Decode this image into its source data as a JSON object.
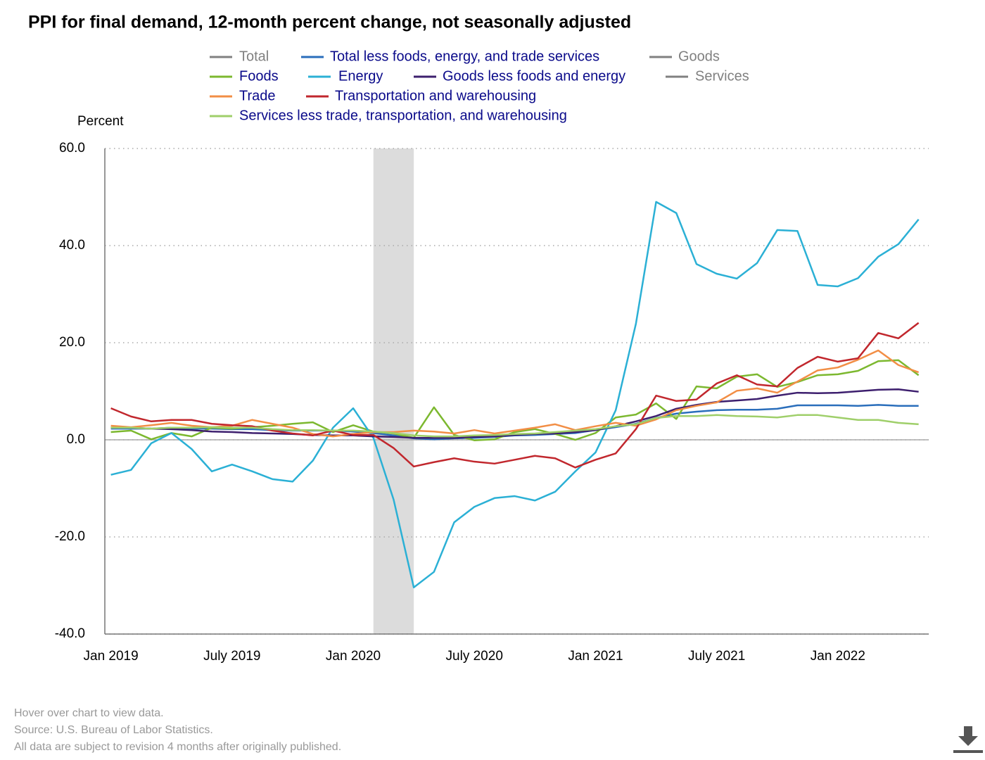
{
  "chart_data": {
    "type": "line",
    "title": "PPI for final demand, 12-month percent change, not seasonally adjusted",
    "y_label": "Percent",
    "notes": [
      "Hover over chart to view data.",
      "Source: U.S. Bureau of Labor Statistics.",
      "All data are subject to revision 4 months after originally published."
    ],
    "categories": [
      "Jan 2019",
      null,
      null,
      null,
      null,
      null,
      "July 2019",
      null,
      null,
      null,
      null,
      null,
      "Jan 2020",
      null,
      null,
      null,
      null,
      null,
      "July 2020",
      null,
      null,
      null,
      null,
      null,
      "Jan 2021",
      null,
      null,
      null,
      null,
      null,
      "July 2021",
      null,
      null,
      null,
      null,
      null,
      "Jan 2022",
      null,
      null,
      null,
      null
    ],
    "xlim": [
      -0.3,
      40.5
    ],
    "ylim": [
      -40,
      60
    ],
    "yticks": [
      {
        "value": -40,
        "label": "-40.0"
      },
      {
        "value": -20,
        "label": "-20.0"
      },
      {
        "value": 0,
        "label": "0.0"
      },
      {
        "value": 20,
        "label": "20.0"
      },
      {
        "value": 40,
        "label": "40.0"
      },
      {
        "value": 60,
        "label": "60.0"
      }
    ],
    "grid": true,
    "shade": [
      13,
      15
    ],
    "series": [
      {
        "name": "Total",
        "color": "#808080",
        "hidden": true
      },
      {
        "name": "Total less foods, energy, and trade services",
        "color": "#2a6ebb",
        "values": [
          2.3,
          2.3,
          2.3,
          2.5,
          2.3,
          2.3,
          2.2,
          2.2,
          2.0,
          1.9,
          1.9,
          1.9,
          1.7,
          1.4,
          0.9,
          0.3,
          0.1,
          0.3,
          0.4,
          0.6,
          0.9,
          1.0,
          1.2,
          1.4,
          2.0,
          2.6,
          3.3,
          4.5,
          5.4,
          5.8,
          6.1,
          6.2,
          6.2,
          6.4,
          7.1,
          7.1,
          7.1,
          7.0,
          7.2,
          7.0,
          7.0
        ]
      },
      {
        "name": "Goods",
        "color": "#808080",
        "hidden": true
      },
      {
        "name": "Foods",
        "color": "#7cb82f",
        "values": [
          1.6,
          1.9,
          0.1,
          1.4,
          0.7,
          2.5,
          2.3,
          2.6,
          2.9,
          3.3,
          3.6,
          1.6,
          3.0,
          1.7,
          1.3,
          0.4,
          6.7,
          1.0,
          -0.1,
          0.1,
          1.6,
          2.2,
          1.2,
          0.0,
          1.4,
          4.6,
          5.2,
          7.5,
          4.3,
          11.0,
          10.6,
          13.0,
          13.5,
          10.9,
          11.9,
          13.3,
          13.5,
          14.2,
          16.2,
          16.4,
          13.3
        ]
      },
      {
        "name": "Energy",
        "color": "#2bb0d5",
        "values": [
          -7.2,
          -6.2,
          -0.7,
          1.4,
          -1.9,
          -6.5,
          -5.1,
          -6.5,
          -8.1,
          -8.6,
          -4.3,
          2.5,
          6.5,
          0.4,
          -12.3,
          -30.4,
          -27.2,
          -17.0,
          -13.8,
          -12.0,
          -11.6,
          -12.5,
          -10.7,
          -6.5,
          -2.6,
          6.1,
          23.9,
          49.0,
          46.7,
          36.2,
          34.2,
          33.2,
          36.4,
          43.2,
          43.0,
          31.9,
          31.6,
          33.3,
          37.7,
          40.3,
          45.4
        ]
      },
      {
        "name": "Goods less foods and energy",
        "color": "#3d1f6e",
        "values": [
          2.5,
          2.5,
          2.3,
          2.2,
          2.0,
          1.7,
          1.6,
          1.4,
          1.3,
          1.2,
          1.0,
          0.9,
          0.9,
          0.7,
          0.6,
          0.4,
          0.4,
          0.4,
          0.6,
          0.7,
          1.0,
          1.2,
          1.3,
          1.6,
          2.0,
          2.8,
          3.8,
          4.9,
          6.4,
          7.2,
          7.8,
          8.1,
          8.4,
          9.1,
          9.7,
          9.6,
          9.7,
          10.0,
          10.3,
          10.4,
          9.9
        ]
      },
      {
        "name": "Services",
        "color": "#808080",
        "hidden": true
      },
      {
        "name": "Trade",
        "color": "#f28e45",
        "values": [
          2.9,
          2.6,
          3.0,
          3.5,
          2.9,
          2.6,
          2.9,
          4.1,
          3.3,
          2.5,
          1.2,
          0.7,
          1.2,
          1.6,
          1.6,
          1.9,
          1.7,
          1.3,
          2.0,
          1.3,
          1.9,
          2.5,
          3.2,
          2.0,
          2.8,
          3.5,
          2.9,
          4.2,
          6.1,
          7.0,
          7.7,
          10.1,
          10.6,
          9.7,
          12.0,
          14.3,
          14.9,
          16.5,
          18.4,
          15.4,
          13.9
        ]
      },
      {
        "name": "Transportation and warehousing",
        "color": "#c1272d",
        "values": [
          6.5,
          4.8,
          3.8,
          4.1,
          4.1,
          3.3,
          3.0,
          2.8,
          1.9,
          1.3,
          0.9,
          1.9,
          1.0,
          1.0,
          -1.7,
          -5.5,
          -4.6,
          -3.8,
          -4.5,
          -4.9,
          -4.1,
          -3.3,
          -3.8,
          -5.7,
          -4.1,
          -2.8,
          2.2,
          9.1,
          8.0,
          8.3,
          11.6,
          13.3,
          11.4,
          11.0,
          14.8,
          17.1,
          16.1,
          16.8,
          22.0,
          20.9,
          24.1
        ]
      },
      {
        "name": "Services less trade, transportation, and warehousing",
        "color": "#9fcf6a",
        "values": [
          2.5,
          2.5,
          2.3,
          2.5,
          2.5,
          2.6,
          2.5,
          2.5,
          2.2,
          2.0,
          2.0,
          1.9,
          1.9,
          1.7,
          1.4,
          0.9,
          0.7,
          0.7,
          0.9,
          1.0,
          1.2,
          1.3,
          1.6,
          1.9,
          2.2,
          2.8,
          3.2,
          4.5,
          4.9,
          4.9,
          5.1,
          4.9,
          4.8,
          4.6,
          5.1,
          5.1,
          4.6,
          4.1,
          4.1,
          3.5,
          3.2
        ]
      }
    ]
  }
}
